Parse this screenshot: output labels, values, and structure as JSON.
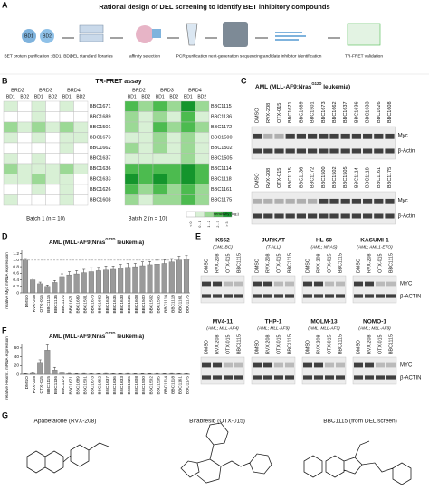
{
  "panel_labels": [
    "A",
    "B",
    "C",
    "D",
    "E",
    "F",
    "G"
  ],
  "panel_a": {
    "title": "Rational design of DEL screening to identify BET inhibitory compounds",
    "bd1": "BD1",
    "bd2": "BD2",
    "steps": [
      "BET protein purification : BD1, BD2",
      "DEL standard libraries",
      "affinity selection",
      "PCR purification",
      "next-generation sequencing",
      "candidate inhibitor identification",
      "TR-FRET validation"
    ]
  },
  "panel_b": {
    "title": "TR-FRET assay",
    "proteins": [
      "BRD2",
      "BRD3",
      "BRD4"
    ],
    "domains": [
      "BD1",
      "BD2",
      "BD1",
      "BD2",
      "BD1",
      "BD2"
    ],
    "batches": [
      {
        "label": "Batch 1 (n = 10)",
        "compounds": [
          "BBC1671",
          "BBC1689",
          "BBC1501",
          "BBC1673",
          "BBC1662",
          "BBC1637",
          "BBC1636",
          "BBC1633",
          "BBC1626",
          "BBC1608"
        ],
        "values": [
          [
            1,
            0,
            1,
            0,
            1,
            0
          ],
          [
            0,
            0,
            1,
            0,
            0,
            0
          ],
          [
            2,
            1,
            2,
            1,
            2,
            1
          ],
          [
            1,
            0,
            1,
            0,
            1,
            1
          ],
          [
            0,
            0,
            0,
            0,
            1,
            0
          ],
          [
            1,
            0,
            1,
            0,
            0,
            0
          ],
          [
            2,
            1,
            1,
            1,
            2,
            1
          ],
          [
            1,
            1,
            2,
            1,
            1,
            0
          ],
          [
            0,
            0,
            1,
            0,
            1,
            0
          ],
          [
            1,
            0,
            0,
            0,
            1,
            0
          ]
        ]
      },
      {
        "label": "Batch 2 (n = 10)",
        "compounds": [
          "BBC1115",
          "BBC1136",
          "BBC1172",
          "BBC1500",
          "BBC1502",
          "BBC1505",
          "BBC1114",
          "BBC1118",
          "BBC1161",
          "BBC1175"
        ],
        "values": [
          [
            3,
            2,
            3,
            2,
            4,
            2
          ],
          [
            2,
            1,
            2,
            1,
            3,
            1
          ],
          [
            2,
            1,
            3,
            2,
            3,
            2
          ],
          [
            1,
            1,
            2,
            1,
            2,
            1
          ],
          [
            2,
            1,
            2,
            1,
            2,
            1
          ],
          [
            1,
            1,
            1,
            1,
            2,
            1
          ],
          [
            3,
            3,
            3,
            3,
            4,
            3
          ],
          [
            4,
            3,
            4,
            3,
            4,
            3
          ],
          [
            3,
            2,
            3,
            2,
            3,
            2
          ],
          [
            2,
            1,
            2,
            2,
            3,
            2
          ]
        ]
      }
    ],
    "legend_title": "sensitivity (log₂)",
    "legend": [
      {
        "value": 0,
        "label": "< 0"
      },
      {
        "value": 1,
        "label": "0 - 1"
      },
      {
        "value": 2,
        "label": "1 - 2"
      },
      {
        "value": 3,
        "label": "2 - 3"
      },
      {
        "value": 4,
        "label": "> 3"
      }
    ],
    "colors": [
      "#ffffff",
      "#d8f0d5",
      "#9bd995",
      "#4cbb4f",
      "#14952c"
    ]
  },
  "panel_c": {
    "title": [
      "AML (MLL-AF9;Nras",
      "G12D",
      " leukemia)"
    ],
    "targets": [
      "Myc",
      "β-Actin"
    ],
    "blots": [
      [
        "DMSO",
        "RVX-208",
        "OTX-015",
        "BBC1671",
        "BBC1689",
        "BBC1501",
        "BBC1673",
        "BBC1662",
        "BBC1637",
        "BBC1636",
        "BBC1633",
        "BBC1626",
        "BBC1608"
      ],
      [
        "DMSO",
        "RVX-208",
        "OTX-015",
        "BBC1115",
        "BBC1136",
        "BBC1172",
        "BBC1500",
        "BBC1502",
        "BBC1505",
        "BBC1114",
        "BBC1118",
        "BBC1161",
        "BBC1175"
      ]
    ]
  },
  "panel_e": {
    "lanes": [
      "DMSO",
      "RVX-208",
      "OTX-015",
      "BBC1115"
    ],
    "targets": [
      "MYC",
      "β-ACTIN"
    ],
    "cells": [
      {
        "name": "K562",
        "sub": "(CML-BC)"
      },
      {
        "name": "JURKAT",
        "sub": "(T-ALL)"
      },
      {
        "name": "HL-60",
        "sub": "(AML; NRAS)"
      },
      {
        "name": "KASUMI-1",
        "sub": "(AML; AML1-ETO)"
      },
      {
        "name": "MV4-11",
        "sub": "(AML; MLL-AF4)"
      },
      {
        "name": "THP-1",
        "sub": "(AML; MLL-AF9)"
      },
      {
        "name": "MOLM-13",
        "sub": "(AML; MLL-AF9)"
      },
      {
        "name": "NOMO-1",
        "sub": "(AML; MLL-AF9)"
      }
    ]
  },
  "panel_g": {
    "names": [
      "Apabetalone (RVX-208)",
      "Birabresib (OTX-015)",
      "BBC1115 (from DEL screen)"
    ]
  },
  "chart_data": [
    {
      "type": "bar",
      "title": [
        "AML (MLL-AF9;Nras",
        "G12D",
        " leukemia)"
      ],
      "y_label": "relative Myc mRNA expression",
      "color": "#9a9a9a",
      "reference": 1,
      "categories": [
        "DMSO",
        "RVX-208",
        "OTX-015",
        "BBC1115",
        "BBC1136",
        "BBC1172",
        "BBC1671",
        "BBC1689",
        "BBC1501",
        "BBC1673",
        "BBC1662",
        "BBC1637",
        "BBC1636",
        "BBC1633",
        "BBC1626",
        "BBC1608",
        "BBC1500",
        "BBC1502",
        "BBC1505",
        "BBC1114",
        "BBC1118",
        "BBC1161",
        "BBC1175"
      ],
      "values": [
        1.0,
        0.4,
        0.28,
        0.2,
        0.32,
        0.5,
        0.55,
        0.58,
        0.62,
        0.65,
        0.68,
        0.7,
        0.72,
        0.75,
        0.78,
        0.8,
        0.83,
        0.86,
        0.88,
        0.9,
        0.95,
        1.0,
        1.04
      ],
      "errors": [
        0.05,
        0.06,
        0.05,
        0.04,
        0.06,
        0.08,
        0.1,
        0.1,
        0.1,
        0.12,
        0.1,
        0.12,
        0.1,
        0.12,
        0.12,
        0.1,
        0.12,
        0.1,
        0.12,
        0.12,
        0.1,
        0.12,
        0.1
      ],
      "ylim": [
        0,
        1.3
      ],
      "yticks": [
        0,
        0.2,
        0.4,
        0.6,
        0.8,
        {
          "value": 1,
          "label": "1.0"
        },
        1.2
      ]
    },
    {
      "type": "bar",
      "title": [
        "AML (MLL-AF9;Nras",
        "G12D",
        " leukemia)"
      ],
      "y_label": "relative Hexim1 mRNA expression",
      "color": "#9a9a9a",
      "categories": [
        "DMSO",
        "RVX-208",
        "OTX-015",
        "BBC1115",
        "BBC1136",
        "BBC1172",
        "BBC1671",
        "BBC1689",
        "BBC1501",
        "BBC1673",
        "BBC1662",
        "BBC1637",
        "BBC1636",
        "BBC1633",
        "BBC1626",
        "BBC1608",
        "BBC1500",
        "BBC1502",
        "BBC1505",
        "BBC1114",
        "BBC1118",
        "BBC1161",
        "BBC1175"
      ],
      "values": [
        1,
        2,
        25,
        55,
        10,
        3,
        1.5,
        1,
        1.2,
        1,
        1,
        1.3,
        1,
        1,
        1.2,
        1,
        1,
        1,
        1.1,
        1,
        1.2,
        1,
        1
      ],
      "errors": [
        0.5,
        1,
        8,
        12,
        6,
        1.5,
        0.5,
        0.5,
        0.5,
        0.5,
        0.5,
        0.5,
        0.5,
        0.5,
        0.5,
        0.5,
        0.5,
        0.5,
        0.5,
        0.5,
        0.5,
        0.5,
        0.5
      ],
      "ylim": [
        0,
        70
      ],
      "yticks": [
        0,
        20,
        40,
        60
      ]
    }
  ]
}
